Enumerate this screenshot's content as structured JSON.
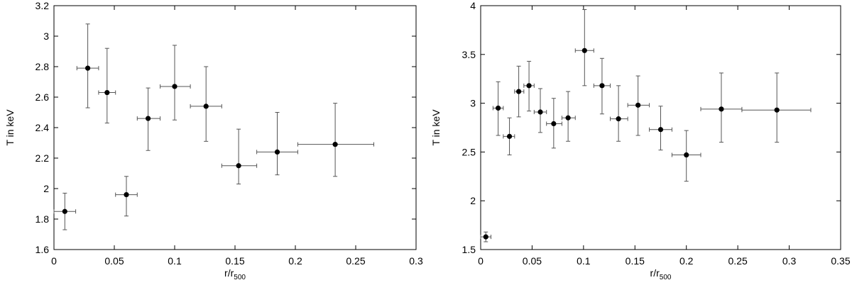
{
  "chart_data": [
    {
      "type": "scatter",
      "xlabel_main": "r/r",
      "xlabel_sub": "500",
      "ylabel": "T in keV",
      "xlim": [
        0,
        0.3
      ],
      "ylim": [
        1.6,
        3.2
      ],
      "xticks": [
        0,
        0.05,
        0.1,
        0.15,
        0.2,
        0.25,
        0.3
      ],
      "xtick_labels": [
        "0",
        "0.05",
        "0.1",
        "0.15",
        "0.2",
        "0.25",
        "0.3"
      ],
      "yticks": [
        1.6,
        1.8,
        2.0,
        2.2,
        2.4,
        2.6,
        2.8,
        3.0,
        3.2
      ],
      "ytick_labels": [
        "1.6",
        "1.8",
        "2",
        "2.2",
        "2.4",
        "2.6",
        "2.8",
        "3",
        "3.2"
      ],
      "grid": false,
      "points": [
        {
          "x": 0.009,
          "y": 1.85,
          "xlo": 0.0,
          "xhi": 0.018,
          "ylo": 1.73,
          "yhi": 1.97
        },
        {
          "x": 0.028,
          "y": 2.79,
          "xlo": 0.019,
          "xhi": 0.037,
          "ylo": 2.53,
          "yhi": 3.08
        },
        {
          "x": 0.044,
          "y": 2.63,
          "xlo": 0.037,
          "xhi": 0.051,
          "ylo": 2.43,
          "yhi": 2.92
        },
        {
          "x": 0.06,
          "y": 1.96,
          "xlo": 0.051,
          "xhi": 0.069,
          "ylo": 1.82,
          "yhi": 2.08
        },
        {
          "x": 0.078,
          "y": 2.46,
          "xlo": 0.069,
          "xhi": 0.088,
          "ylo": 2.25,
          "yhi": 2.66
        },
        {
          "x": 0.1,
          "y": 2.67,
          "xlo": 0.088,
          "xhi": 0.113,
          "ylo": 2.45,
          "yhi": 2.94
        },
        {
          "x": 0.126,
          "y": 2.54,
          "xlo": 0.113,
          "xhi": 0.139,
          "ylo": 2.31,
          "yhi": 2.8
        },
        {
          "x": 0.153,
          "y": 2.15,
          "xlo": 0.139,
          "xhi": 0.168,
          "ylo": 2.03,
          "yhi": 2.39
        },
        {
          "x": 0.185,
          "y": 2.24,
          "xlo": 0.168,
          "xhi": 0.202,
          "ylo": 2.09,
          "yhi": 2.5
        },
        {
          "x": 0.233,
          "y": 2.29,
          "xlo": 0.202,
          "xhi": 0.265,
          "ylo": 2.08,
          "yhi": 2.56
        }
      ]
    },
    {
      "type": "scatter",
      "xlabel_main": "r/r",
      "xlabel_sub": "500",
      "ylabel": "T in keV",
      "xlim": [
        0,
        0.35
      ],
      "ylim": [
        1.5,
        4.0
      ],
      "xticks": [
        0,
        0.05,
        0.1,
        0.15,
        0.2,
        0.25,
        0.3,
        0.35
      ],
      "xtick_labels": [
        "0",
        "0.05",
        "0.1",
        "0.15",
        "0.2",
        "0.25",
        "0.3",
        "0.35"
      ],
      "yticks": [
        1.5,
        2.0,
        2.5,
        3.0,
        3.5,
        4.0
      ],
      "ytick_labels": [
        "1.5",
        "2",
        "2.5",
        "3",
        "3.5",
        "4"
      ],
      "grid": false,
      "points": [
        {
          "x": 0.005,
          "y": 1.63,
          "xlo": 0.0,
          "xhi": 0.01,
          "ylo": 1.58,
          "yhi": 1.68
        },
        {
          "x": 0.017,
          "y": 2.95,
          "xlo": 0.012,
          "xhi": 0.022,
          "ylo": 2.67,
          "yhi": 3.22
        },
        {
          "x": 0.028,
          "y": 2.66,
          "xlo": 0.022,
          "xhi": 0.033,
          "ylo": 2.47,
          "yhi": 2.85
        },
        {
          "x": 0.037,
          "y": 3.12,
          "xlo": 0.033,
          "xhi": 0.042,
          "ylo": 2.86,
          "yhi": 3.38
        },
        {
          "x": 0.047,
          "y": 3.18,
          "xlo": 0.042,
          "xhi": 0.052,
          "ylo": 2.92,
          "yhi": 3.43
        },
        {
          "x": 0.058,
          "y": 2.91,
          "xlo": 0.052,
          "xhi": 0.064,
          "ylo": 2.7,
          "yhi": 3.15
        },
        {
          "x": 0.071,
          "y": 2.79,
          "xlo": 0.064,
          "xhi": 0.079,
          "ylo": 2.54,
          "yhi": 3.05
        },
        {
          "x": 0.085,
          "y": 2.85,
          "xlo": 0.079,
          "xhi": 0.092,
          "ylo": 2.61,
          "yhi": 3.12
        },
        {
          "x": 0.101,
          "y": 3.54,
          "xlo": 0.092,
          "xhi": 0.11,
          "ylo": 3.18,
          "yhi": 3.96
        },
        {
          "x": 0.118,
          "y": 3.18,
          "xlo": 0.11,
          "xhi": 0.126,
          "ylo": 2.89,
          "yhi": 3.46
        },
        {
          "x": 0.134,
          "y": 2.84,
          "xlo": 0.126,
          "xhi": 0.143,
          "ylo": 2.61,
          "yhi": 3.18
        },
        {
          "x": 0.153,
          "y": 2.98,
          "xlo": 0.143,
          "xhi": 0.164,
          "ylo": 2.67,
          "yhi": 3.28
        },
        {
          "x": 0.175,
          "y": 2.73,
          "xlo": 0.164,
          "xhi": 0.186,
          "ylo": 2.52,
          "yhi": 2.97
        },
        {
          "x": 0.2,
          "y": 2.47,
          "xlo": 0.186,
          "xhi": 0.214,
          "ylo": 2.2,
          "yhi": 2.72
        },
        {
          "x": 0.234,
          "y": 2.94,
          "xlo": 0.214,
          "xhi": 0.254,
          "ylo": 2.6,
          "yhi": 3.31
        },
        {
          "x": 0.288,
          "y": 2.93,
          "xlo": 0.254,
          "xhi": 0.321,
          "ylo": 2.6,
          "yhi": 3.31
        }
      ]
    }
  ]
}
